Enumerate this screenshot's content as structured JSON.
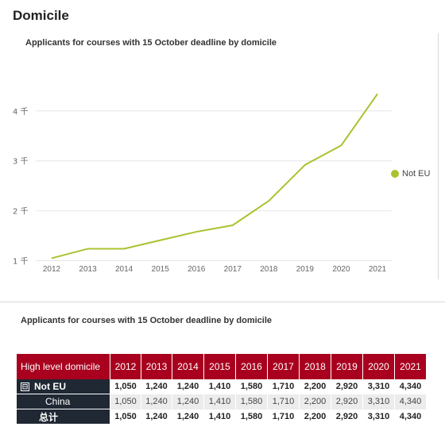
{
  "page": {
    "title": "Domicile"
  },
  "chart_data": {
    "type": "line",
    "title": "Applicants for courses with 15 October deadline  by domicile",
    "x": [
      "2012",
      "2013",
      "2014",
      "2015",
      "2016",
      "2017",
      "2018",
      "2019",
      "2020",
      "2021"
    ],
    "series": [
      {
        "name": "Not EU",
        "color": "#a8c32f",
        "values": [
          1050,
          1240,
          1240,
          1410,
          1580,
          1710,
          2200,
          2920,
          3310,
          4340
        ]
      }
    ],
    "yticks": [
      {
        "value": 1000,
        "label": "1 千"
      },
      {
        "value": 2000,
        "label": "2 千"
      },
      {
        "value": 3000,
        "label": "3 千"
      },
      {
        "value": 4000,
        "label": "4 千"
      }
    ],
    "ylim": [
      850,
      4950
    ],
    "grid": true,
    "legend_position": "right"
  },
  "table": {
    "title": "Applicants for courses with 15 October deadline  by domicile",
    "header_first": "High level domicile",
    "years": [
      "2012",
      "2013",
      "2014",
      "2015",
      "2016",
      "2017",
      "2018",
      "2019",
      "2020",
      "2021"
    ],
    "expander_symbol": "⊟",
    "rows": [
      {
        "label": "Not EU",
        "values": [
          "1,050",
          "1,240",
          "1,240",
          "1,410",
          "1,580",
          "1,710",
          "2,200",
          "2,920",
          "3,310",
          "4,340"
        ]
      },
      {
        "label": "China",
        "values": [
          "1,050",
          "1,240",
          "1,240",
          "1,410",
          "1,580",
          "1,710",
          "2,200",
          "2,920",
          "3,310",
          "4,340"
        ]
      },
      {
        "label": "总计",
        "values": [
          "1,050",
          "1,240",
          "1,240",
          "1,410",
          "1,580",
          "1,710",
          "2,200",
          "2,920",
          "3,310",
          "4,340"
        ]
      }
    ]
  }
}
